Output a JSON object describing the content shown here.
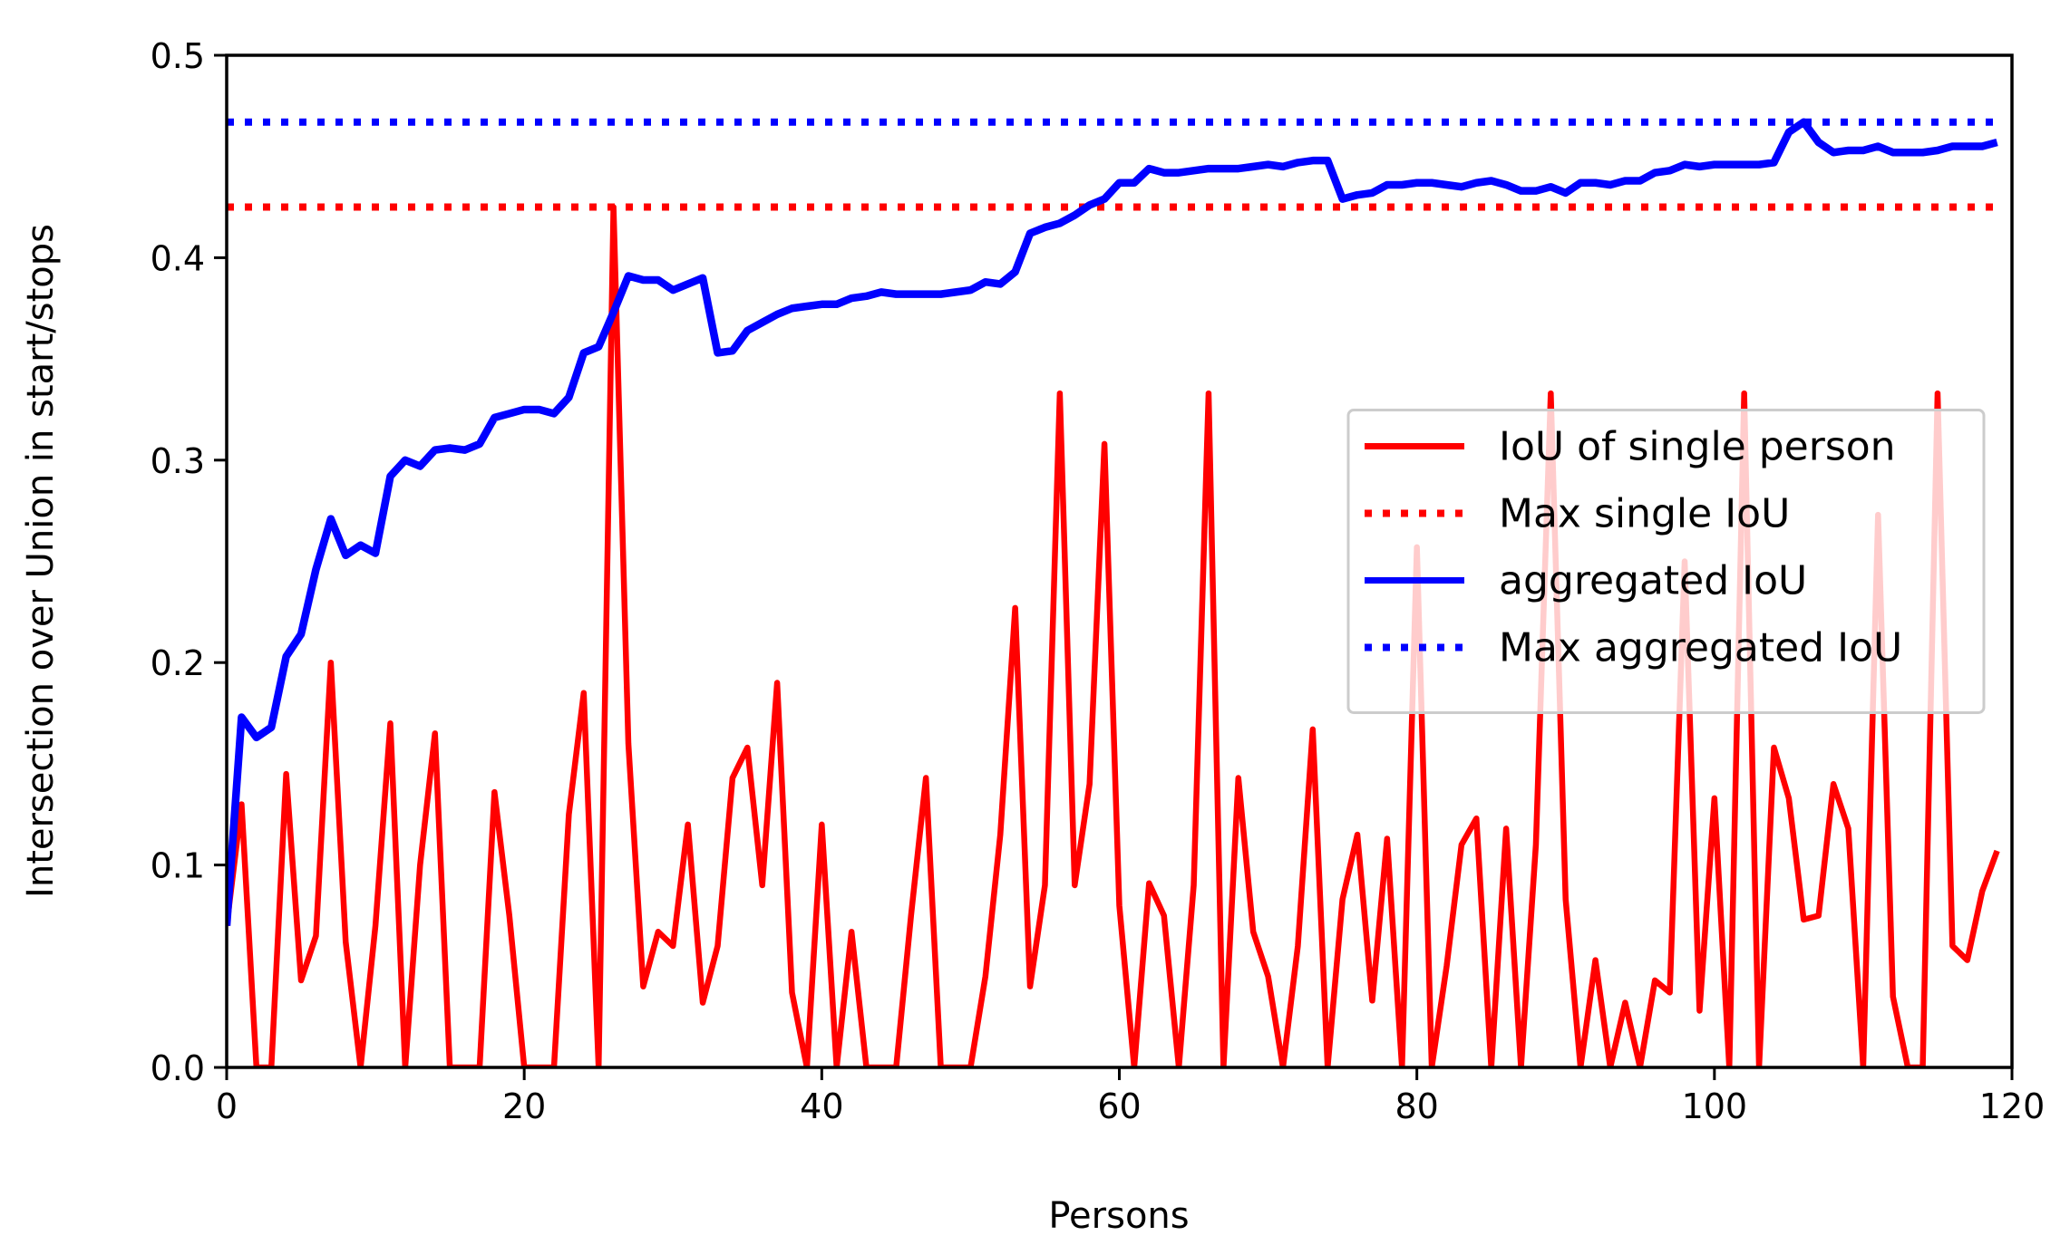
{
  "chart_data": {
    "type": "line",
    "xlabel": "Persons",
    "ylabel": "Intersection over Union in start/stops",
    "x": [
      0,
      1,
      2,
      3,
      4,
      5,
      6,
      7,
      8,
      9,
      10,
      11,
      12,
      13,
      14,
      15,
      16,
      17,
      18,
      19,
      20,
      21,
      22,
      23,
      24,
      25,
      26,
      27,
      28,
      29,
      30,
      31,
      32,
      33,
      34,
      35,
      36,
      37,
      38,
      39,
      40,
      41,
      42,
      43,
      44,
      45,
      46,
      47,
      48,
      49,
      50,
      51,
      52,
      53,
      54,
      55,
      56,
      57,
      58,
      59,
      60,
      61,
      62,
      63,
      64,
      65,
      66,
      67,
      68,
      69,
      70,
      71,
      72,
      73,
      74,
      75,
      76,
      77,
      78,
      79,
      80,
      81,
      82,
      83,
      84,
      85,
      86,
      87,
      88,
      89,
      90,
      91,
      92,
      93,
      94,
      95,
      96,
      97,
      98,
      99,
      100,
      101,
      102,
      103,
      104,
      105,
      106,
      107,
      108,
      109,
      110,
      111,
      112,
      113,
      114,
      115,
      116,
      117,
      118,
      119
    ],
    "series": [
      {
        "name": "IoU of single person",
        "color": "#ff0000",
        "linestyle": "solid",
        "values": [
          0.07,
          0.13,
          0.0,
          0.0,
          0.145,
          0.043,
          0.065,
          0.2,
          0.062,
          0.0,
          0.07,
          0.17,
          0.0,
          0.1,
          0.165,
          0.0,
          0.0,
          0.0,
          0.136,
          0.075,
          0.0,
          0.0,
          0.0,
          0.125,
          0.185,
          0.0,
          0.425,
          0.16,
          0.04,
          0.067,
          0.06,
          0.12,
          0.032,
          0.06,
          0.143,
          0.158,
          0.09,
          0.19,
          0.037,
          0.0,
          0.12,
          0.0,
          0.067,
          0.0,
          0.0,
          0.0,
          0.075,
          0.143,
          0.0,
          0.0,
          0.0,
          0.045,
          0.115,
          0.227,
          0.04,
          0.09,
          0.333,
          0.09,
          0.14,
          0.308,
          0.08,
          0.0,
          0.091,
          0.075,
          0.0,
          0.09,
          0.333,
          0.0,
          0.143,
          0.067,
          0.045,
          0.0,
          0.06,
          0.167,
          0.0,
          0.083,
          0.115,
          0.033,
          0.113,
          0.0,
          0.257,
          0.0,
          0.05,
          0.11,
          0.123,
          0.0,
          0.118,
          0.0,
          0.11,
          0.333,
          0.083,
          0.0,
          0.053,
          0.0,
          0.032,
          0.0,
          0.043,
          0.037,
          0.25,
          0.028,
          0.133,
          0.0,
          0.333,
          0.0,
          0.158,
          0.133,
          0.073,
          0.075,
          0.14,
          0.118,
          0.0,
          0.273,
          0.035,
          0.0,
          0.0,
          0.333,
          0.06,
          0.053,
          0.087,
          0.107
        ]
      },
      {
        "name": "Max single IoU",
        "color": "#ff0000",
        "linestyle": "dotted",
        "value": 0.425
      },
      {
        "name": "aggregated IoU",
        "color": "#0000ff",
        "linestyle": "solid",
        "values": [
          0.07,
          0.173,
          0.163,
          0.168,
          0.203,
          0.214,
          0.246,
          0.271,
          0.253,
          0.258,
          0.254,
          0.292,
          0.3,
          0.297,
          0.305,
          0.306,
          0.305,
          0.308,
          0.321,
          0.323,
          0.325,
          0.325,
          0.323,
          0.331,
          0.353,
          0.356,
          0.373,
          0.391,
          0.389,
          0.389,
          0.384,
          0.387,
          0.39,
          0.353,
          0.354,
          0.364,
          0.368,
          0.372,
          0.375,
          0.376,
          0.377,
          0.377,
          0.38,
          0.381,
          0.383,
          0.382,
          0.382,
          0.382,
          0.382,
          0.383,
          0.384,
          0.388,
          0.387,
          0.393,
          0.412,
          0.415,
          0.417,
          0.421,
          0.426,
          0.429,
          0.437,
          0.437,
          0.444,
          0.442,
          0.442,
          0.443,
          0.444,
          0.444,
          0.444,
          0.445,
          0.446,
          0.445,
          0.447,
          0.448,
          0.448,
          0.429,
          0.431,
          0.432,
          0.436,
          0.436,
          0.437,
          0.437,
          0.436,
          0.435,
          0.437,
          0.438,
          0.436,
          0.433,
          0.433,
          0.435,
          0.432,
          0.437,
          0.437,
          0.436,
          0.438,
          0.438,
          0.442,
          0.443,
          0.446,
          0.445,
          0.446,
          0.446,
          0.446,
          0.446,
          0.447,
          0.462,
          0.467,
          0.457,
          0.452,
          0.453,
          0.453,
          0.455,
          0.452,
          0.452,
          0.452,
          0.453,
          0.455,
          0.455,
          0.455,
          0.457
        ]
      },
      {
        "name": "Max aggregated IoU",
        "color": "#0000ff",
        "linestyle": "dotted",
        "value": 0.467
      }
    ],
    "xlim": [
      0,
      120
    ],
    "xticks": [
      0,
      20,
      40,
      60,
      80,
      100,
      120
    ],
    "ylim": [
      0,
      0.5
    ],
    "yticks": [
      {
        "value": 0,
        "label": "0.0"
      },
      0.1,
      0.2,
      0.3,
      0.4,
      0.5
    ],
    "grid": false,
    "legend": "center right"
  }
}
